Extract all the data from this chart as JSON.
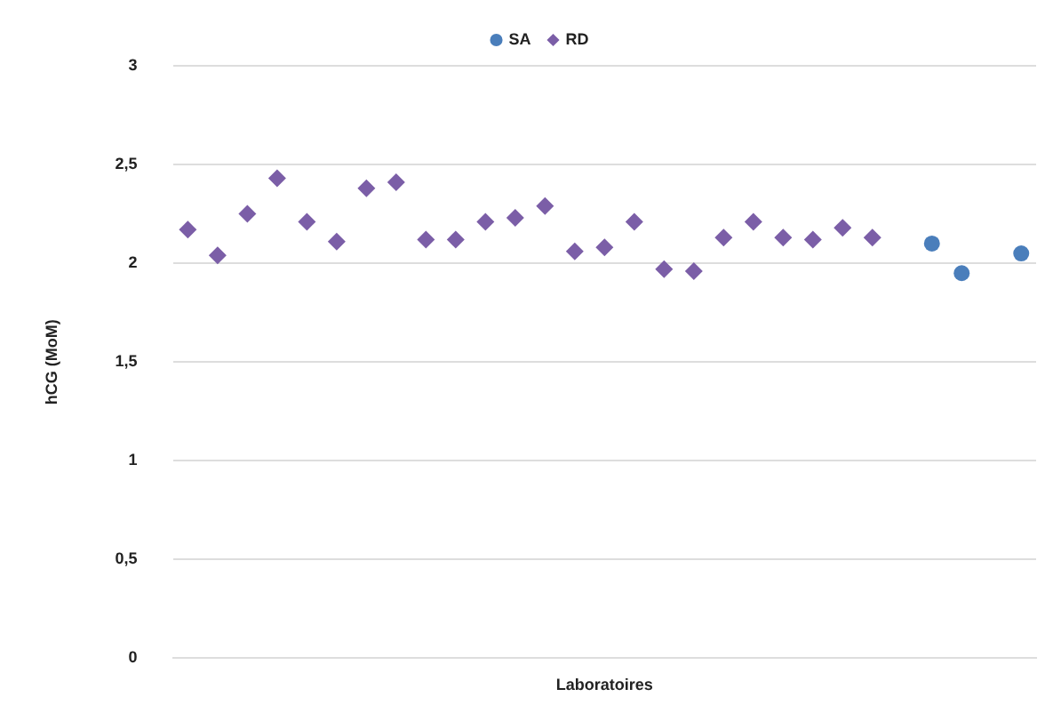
{
  "chart_data": {
    "type": "scatter",
    "xlabel": "Laboratoires",
    "ylabel": "hCG (MoM)",
    "legend": "top",
    "grid": "y",
    "tick_labels": "y",
    "categories": [
      null,
      null,
      null,
      null,
      null,
      null,
      null,
      null,
      null,
      null,
      null,
      null,
      null,
      null,
      null,
      null,
      null,
      null,
      null,
      null,
      null,
      null,
      null,
      null,
      null,
      null,
      null,
      null,
      null
    ],
    "ylim": [
      0,
      3
    ],
    "yticks": [
      0,
      {
        "value": 0.5,
        "label": "0,5"
      },
      1,
      {
        "value": 1.5,
        "label": "1,5"
      },
      2,
      {
        "value": 2.5,
        "label": "2,5"
      },
      3
    ],
    "series": [
      {
        "name": "SA",
        "color": "#4a7ebb",
        "marker": "circle",
        "values": [
          null,
          null,
          null,
          null,
          null,
          null,
          null,
          null,
          null,
          null,
          null,
          null,
          null,
          null,
          null,
          null,
          null,
          null,
          null,
          null,
          null,
          null,
          null,
          null,
          null,
          2.1,
          1.95,
          null,
          2.05
        ]
      },
      {
        "name": "RD",
        "color": "#7b5ea7",
        "marker": "diamond",
        "values": [
          2.17,
          2.04,
          2.25,
          2.43,
          2.21,
          2.11,
          2.38,
          2.41,
          2.12,
          2.12,
          2.21,
          2.23,
          2.29,
          2.06,
          2.08,
          2.21,
          1.97,
          1.96,
          2.13,
          2.21,
          2.13,
          2.12,
          2.18,
          2.13,
          null,
          null,
          null,
          null,
          null
        ]
      }
    ]
  }
}
